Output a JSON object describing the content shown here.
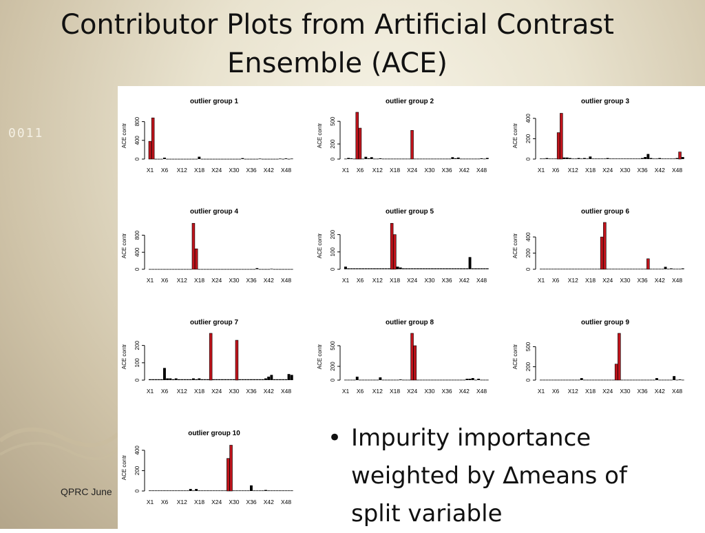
{
  "slide": {
    "title": "Contributor Plots from Artificial Contrast Ensemble (ACE)",
    "binary": "0011",
    "footer": "QPRC June",
    "bullet_text": "Impurity importance weighted by ∆means of split variable",
    "bullet_symbol": "•"
  },
  "colors": {
    "highlight": "#c0141c",
    "other": "#000000",
    "panel": "#ffffff"
  },
  "chart_data": [
    {
      "type": "bar",
      "title": "outlier group 1",
      "ylabel": "ACE contr",
      "ylim": [
        0,
        1000
      ],
      "yticks": [
        0,
        400,
        800
      ],
      "xticks": [
        "X1",
        "X6",
        "X12",
        "X18",
        "X24",
        "X30",
        "X36",
        "X42",
        "X48"
      ],
      "values": [
        380,
        880,
        5,
        5,
        5,
        30,
        5,
        5,
        5,
        5,
        5,
        5,
        5,
        5,
        5,
        5,
        5,
        50,
        5,
        5,
        5,
        5,
        5,
        5,
        5,
        5,
        5,
        5,
        5,
        5,
        5,
        5,
        20,
        5,
        5,
        5,
        5,
        5,
        10,
        5,
        5,
        5,
        5,
        5,
        5,
        10,
        5,
        15,
        5,
        10
      ],
      "highlighted": [
        1,
        2
      ]
    },
    {
      "type": "bar",
      "title": "outlier group 2",
      "ylabel": "ACE contr",
      "ylim": [
        0,
        620
      ],
      "yticks": [
        0,
        200,
        500
      ],
      "xticks": [
        "X1",
        "X6",
        "X12",
        "X18",
        "X24",
        "X30",
        "X36",
        "X42",
        "X48"
      ],
      "values": [
        5,
        15,
        10,
        5,
        620,
        410,
        5,
        30,
        10,
        25,
        5,
        5,
        10,
        5,
        5,
        5,
        5,
        5,
        5,
        5,
        5,
        5,
        5,
        380,
        5,
        5,
        5,
        5,
        5,
        5,
        5,
        5,
        5,
        5,
        5,
        5,
        5,
        25,
        10,
        20,
        5,
        5,
        5,
        5,
        5,
        5,
        5,
        10,
        5,
        15
      ],
      "highlighted": [
        5,
        6,
        24
      ]
    },
    {
      "type": "bar",
      "title": "outlier group 3",
      "ylabel": "ACE contr",
      "ylim": [
        0,
        460
      ],
      "yticks": [
        0,
        200,
        400
      ],
      "xticks": [
        "X1",
        "X6",
        "X12",
        "X18",
        "X24",
        "X30",
        "X36",
        "X42",
        "X48"
      ],
      "values": [
        5,
        5,
        10,
        5,
        5,
        5,
        260,
        450,
        15,
        15,
        10,
        5,
        5,
        10,
        5,
        10,
        5,
        25,
        5,
        5,
        5,
        5,
        5,
        10,
        5,
        5,
        5,
        5,
        5,
        5,
        5,
        5,
        5,
        5,
        5,
        10,
        20,
        50,
        10,
        5,
        5,
        10,
        5,
        5,
        5,
        5,
        5,
        10,
        70,
        20
      ],
      "highlighted": [
        7,
        8,
        49
      ]
    },
    {
      "type": "bar",
      "title": "outlier group 4",
      "ylabel": "ACE contr",
      "ylim": [
        0,
        1100
      ],
      "yticks": [
        0,
        400,
        800
      ],
      "xticks": [
        "X1",
        "X6",
        "X12",
        "X18",
        "X24",
        "X30",
        "X36",
        "X42",
        "X48"
      ],
      "values": [
        5,
        5,
        5,
        5,
        5,
        5,
        5,
        5,
        5,
        5,
        5,
        5,
        5,
        5,
        5,
        1080,
        480,
        5,
        5,
        5,
        5,
        5,
        5,
        5,
        5,
        5,
        5,
        5,
        5,
        5,
        5,
        5,
        5,
        5,
        5,
        5,
        5,
        25,
        5,
        5,
        5,
        5,
        10,
        5,
        5,
        5,
        5,
        5,
        5,
        5
      ],
      "highlighted": [
        16,
        17
      ]
    },
    {
      "type": "bar",
      "title": "outlier group 5",
      "ylabel": "ACE contr",
      "ylim": [
        0,
        270
      ],
      "yticks": [
        0,
        100,
        200
      ],
      "xticks": [
        "X1",
        "X6",
        "X12",
        "X18",
        "X24",
        "X30",
        "X36",
        "X42",
        "X48"
      ],
      "values": [
        15,
        5,
        5,
        5,
        5,
        5,
        5,
        5,
        5,
        5,
        5,
        5,
        5,
        5,
        5,
        5,
        265,
        200,
        15,
        10,
        5,
        5,
        5,
        5,
        5,
        5,
        5,
        5,
        5,
        5,
        5,
        5,
        5,
        5,
        5,
        5,
        5,
        5,
        5,
        5,
        5,
        5,
        5,
        70,
        5,
        5,
        5,
        5,
        5,
        5
      ],
      "highlighted": [
        17,
        18
      ]
    },
    {
      "type": "bar",
      "title": "outlier group 6",
      "ylabel": "ACE contr",
      "ylim": [
        0,
        580
      ],
      "yticks": [
        0,
        200,
        400
      ],
      "xticks": [
        "X1",
        "X6",
        "X12",
        "X18",
        "X24",
        "X30",
        "X36",
        "X42",
        "X48"
      ],
      "values": [
        5,
        5,
        5,
        5,
        5,
        5,
        5,
        5,
        5,
        5,
        5,
        5,
        5,
        5,
        5,
        5,
        5,
        5,
        5,
        5,
        5,
        400,
        580,
        5,
        5,
        5,
        5,
        5,
        5,
        5,
        5,
        5,
        5,
        5,
        5,
        5,
        5,
        130,
        5,
        5,
        5,
        5,
        5,
        30,
        5,
        10,
        5,
        5,
        5,
        10
      ],
      "highlighted": [
        22,
        23,
        38
      ]
    },
    {
      "type": "bar",
      "title": "outlier group 7",
      "ylabel": "ACE contr",
      "ylim": [
        0,
        270
      ],
      "yticks": [
        0,
        100,
        200
      ],
      "xticks": [
        "X1",
        "X6",
        "X12",
        "X18",
        "X24",
        "X30",
        "X36",
        "X42",
        "X48"
      ],
      "values": [
        5,
        5,
        5,
        5,
        5,
        70,
        10,
        10,
        5,
        10,
        5,
        5,
        5,
        5,
        5,
        10,
        5,
        10,
        5,
        5,
        5,
        270,
        5,
        5,
        5,
        5,
        5,
        5,
        5,
        5,
        230,
        5,
        5,
        5,
        5,
        5,
        5,
        5,
        5,
        5,
        10,
        20,
        30,
        5,
        5,
        5,
        5,
        5,
        35,
        30
      ],
      "highlighted": [
        22,
        31
      ]
    },
    {
      "type": "bar",
      "title": "outlier group 8",
      "ylabel": "ACE contr",
      "ylim": [
        0,
        680
      ],
      "yticks": [
        0,
        200,
        500
      ],
      "xticks": [
        "X1",
        "X6",
        "X12",
        "X18",
        "X24",
        "X30",
        "X36",
        "X42",
        "X48"
      ],
      "values": [
        5,
        5,
        5,
        5,
        50,
        5,
        5,
        5,
        5,
        5,
        5,
        5,
        40,
        5,
        5,
        5,
        5,
        5,
        5,
        10,
        5,
        5,
        5,
        680,
        500,
        5,
        5,
        5,
        5,
        5,
        5,
        5,
        5,
        5,
        5,
        5,
        5,
        5,
        5,
        5,
        5,
        5,
        20,
        20,
        30,
        5,
        20,
        5,
        5,
        5
      ],
      "highlighted": [
        24,
        25
      ]
    },
    {
      "type": "bar",
      "title": "outlier group 9",
      "ylabel": "ACE contr",
      "ylim": [
        0,
        700
      ],
      "yticks": [
        0,
        200,
        500
      ],
      "xticks": [
        "X1",
        "X6",
        "X12",
        "X18",
        "X24",
        "X30",
        "X36",
        "X42",
        "X48"
      ],
      "values": [
        5,
        5,
        5,
        5,
        5,
        5,
        5,
        5,
        5,
        5,
        5,
        5,
        5,
        5,
        30,
        5,
        5,
        5,
        5,
        5,
        5,
        5,
        5,
        5,
        5,
        5,
        240,
        700,
        5,
        5,
        5,
        5,
        5,
        5,
        5,
        5,
        5,
        5,
        5,
        5,
        30,
        5,
        5,
        5,
        5,
        5,
        60,
        5,
        10,
        5
      ],
      "highlighted": [
        27,
        28
      ]
    },
    {
      "type": "bar",
      "title": "outlier group 10",
      "ylabel": "ACE contr",
      "ylim": [
        0,
        460
      ],
      "yticks": [
        0,
        200,
        400
      ],
      "xticks": [
        "X1",
        "X6",
        "X12",
        "X18",
        "X24",
        "X30",
        "X36",
        "X42",
        "X48"
      ],
      "values": [
        5,
        5,
        5,
        5,
        5,
        5,
        5,
        5,
        5,
        5,
        5,
        5,
        5,
        5,
        20,
        5,
        20,
        5,
        5,
        5,
        5,
        5,
        5,
        5,
        5,
        5,
        5,
        320,
        450,
        5,
        5,
        5,
        5,
        5,
        5,
        55,
        5,
        5,
        5,
        5,
        10,
        5,
        5,
        5,
        5,
        5,
        5,
        5,
        5,
        5
      ],
      "highlighted": [
        28,
        29
      ]
    }
  ]
}
